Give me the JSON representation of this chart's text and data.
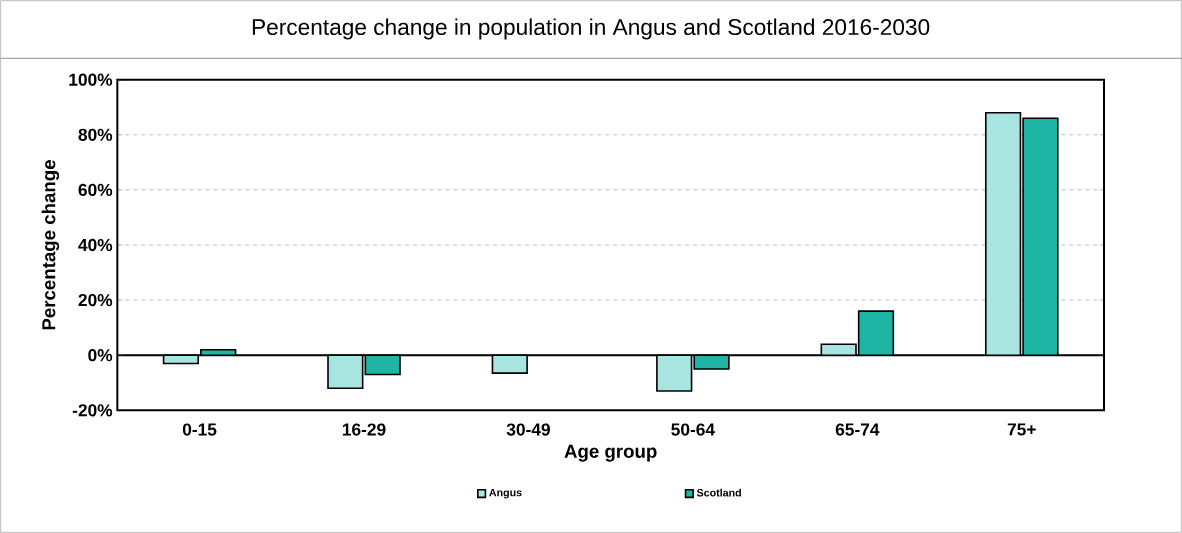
{
  "chart_data": {
    "type": "bar",
    "title": "Percentage change in population in Angus and Scotland 2016-2030",
    "xlabel": "Age group",
    "ylabel": "Percentage change",
    "categories": [
      "0-15",
      "16-29",
      "30-49",
      "50-64",
      "65-74",
      "75+"
    ],
    "series": [
      {
        "name": "Angus",
        "color": "#a8e4e0",
        "values": [
          -3,
          -12,
          -6.5,
          -13,
          4,
          88
        ]
      },
      {
        "name": "Scotland",
        "color": "#1fb5a5",
        "values": [
          2,
          -7,
          null,
          -5,
          16,
          86
        ]
      }
    ],
    "ylim": [
      -20,
      100
    ],
    "yticks": [
      {
        "value": -20,
        "label": "-20%"
      },
      {
        "value": 0,
        "label": "0%"
      },
      {
        "value": 20,
        "label": "20%"
      },
      {
        "value": 40,
        "label": "40%"
      },
      {
        "value": 60,
        "label": "60%"
      },
      {
        "value": 80,
        "label": "80%"
      },
      {
        "value": 100,
        "label": "100%"
      }
    ],
    "grid": "y",
    "legend": "bottom"
  }
}
